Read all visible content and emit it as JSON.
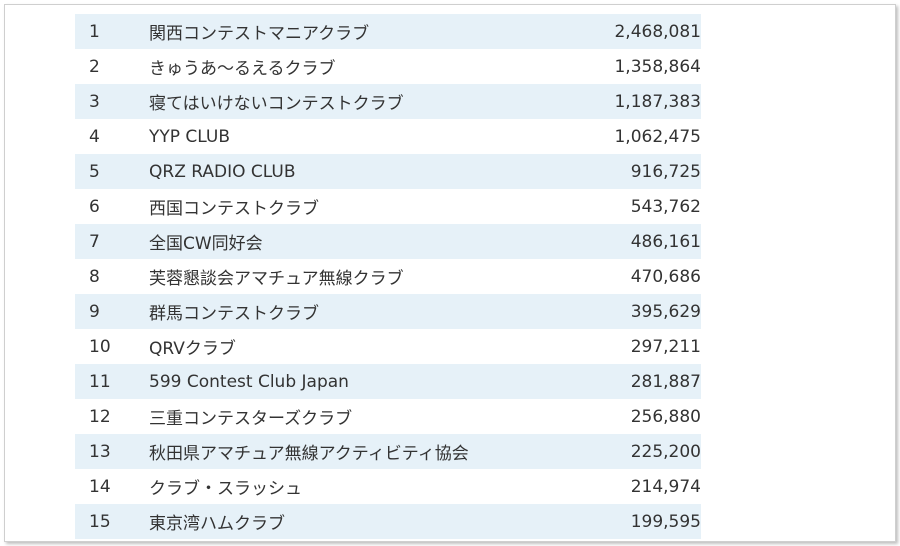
{
  "ranking": {
    "rows": [
      {
        "rank": "1",
        "name": "関西コンテストマニアクラブ",
        "score": "2,468,081"
      },
      {
        "rank": "2",
        "name": "きゅうあ～るえるクラブ",
        "score": "1,358,864"
      },
      {
        "rank": "3",
        "name": "寝てはいけないコンテストクラブ",
        "score": "1,187,383"
      },
      {
        "rank": "4",
        "name": "YYP CLUB",
        "score": "1,062,475"
      },
      {
        "rank": "5",
        "name": "QRZ RADIO CLUB",
        "score": "916,725"
      },
      {
        "rank": "6",
        "name": "西国コンテストクラブ",
        "score": "543,762"
      },
      {
        "rank": "7",
        "name": "全国CW同好会",
        "score": "486,161"
      },
      {
        "rank": "8",
        "name": "芙蓉懇談会アマチュア無線クラブ",
        "score": "470,686"
      },
      {
        "rank": "9",
        "name": "群馬コンテストクラブ",
        "score": "395,629"
      },
      {
        "rank": "10",
        "name": "QRVクラブ",
        "score": "297,211"
      },
      {
        "rank": "11",
        "name": "599 Contest Club Japan",
        "score": "281,887"
      },
      {
        "rank": "12",
        "name": "三重コンテスターズクラブ",
        "score": "256,880"
      },
      {
        "rank": "13",
        "name": "秋田県アマチュア無線アクティビティ協会",
        "score": "225,200"
      },
      {
        "rank": "14",
        "name": "クラブ・スラッシュ",
        "score": "214,974"
      },
      {
        "rank": "15",
        "name": "東京湾ハムクラブ",
        "score": "199,595"
      }
    ]
  }
}
